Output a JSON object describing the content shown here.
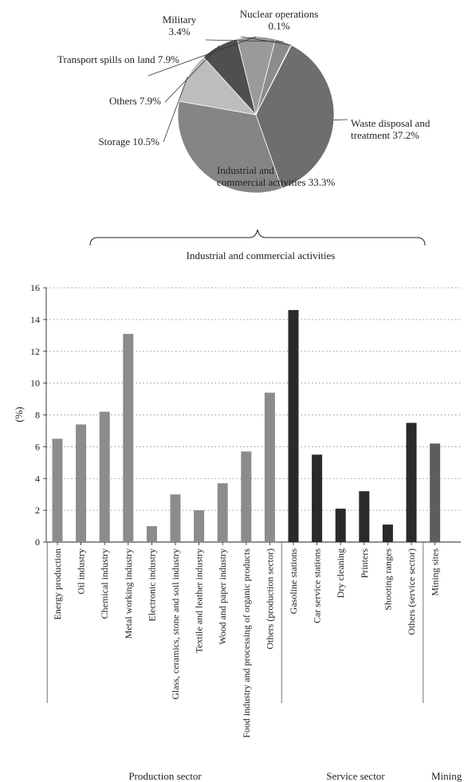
{
  "chart_data": [
    {
      "type": "pie",
      "slices": [
        {
          "label": "Waste disposal and treatment",
          "value": 37.2,
          "display": "37.2%",
          "color": "#6e6e6e"
        },
        {
          "label": "Industrial and commercial activities",
          "value": 33.3,
          "display": "33.3%",
          "color": "#858585"
        },
        {
          "label": "Storage",
          "value": 10.5,
          "display": "10.5%",
          "color": "#bdbdbd"
        },
        {
          "label": "Others",
          "value": 7.9,
          "display": "7.9%",
          "color": "#4f4f4f"
        },
        {
          "label": "Transport spills on land",
          "value": 7.9,
          "display": "7.9%",
          "color": "#9a9a9a"
        },
        {
          "label": "Military",
          "value": 3.4,
          "display": "3.4%",
          "color": "#8c8c8c"
        },
        {
          "label": "Nuclear operations",
          "value": 0.1,
          "display": "0.1%",
          "color": "#3a3a3a"
        }
      ],
      "bracket_label": "Industrial and commercial activities"
    },
    {
      "type": "bar",
      "ylabel": "(%)",
      "ylim": [
        0,
        16
      ],
      "yticks": [
        0,
        2,
        4,
        6,
        8,
        10,
        12,
        14,
        16
      ],
      "grid": true,
      "categories": [
        "Energy production",
        "Oil industry",
        "Chemical industry",
        "Metal working industry",
        "Electronic industry",
        "Glass, ceramics, stone and soil industry",
        "Textile and leather industry",
        "Wood and paper industry",
        "Food industry and processing of organic products",
        "Others (production sector)",
        "Gasoline stations",
        "Car service stations",
        "Dry cleaning",
        "Printers",
        "Shooting ranges",
        "Others (service sector)",
        "Mining sites"
      ],
      "values": [
        6.5,
        7.4,
        8.2,
        13.1,
        1.0,
        3.0,
        2.0,
        3.7,
        5.7,
        9.4,
        14.6,
        5.5,
        2.1,
        3.2,
        1.1,
        7.5,
        6.2
      ],
      "groups": [
        {
          "name": "Production sector",
          "start": 0,
          "end": 9,
          "color": "#8c8c8c"
        },
        {
          "name": "Service sector",
          "start": 10,
          "end": 15,
          "color": "#2a2a2a"
        },
        {
          "name": "Mining",
          "start": 16,
          "end": 16,
          "color": "#5e5e5e"
        }
      ]
    }
  ]
}
